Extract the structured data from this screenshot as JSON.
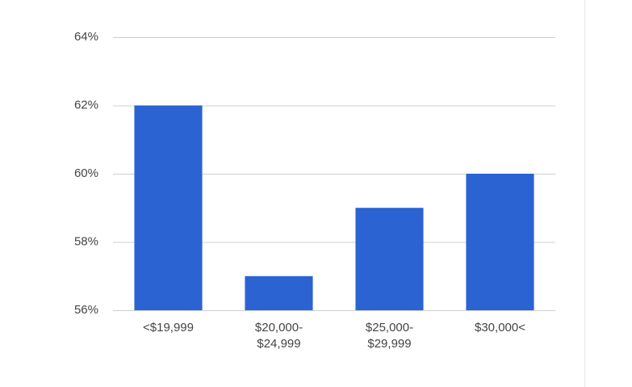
{
  "chart_data": {
    "type": "bar",
    "categories": [
      "<$19,999",
      "$20,000-\n$24,999",
      "$25,000-\n$29,999",
      "$30,000<"
    ],
    "values": [
      62,
      57,
      59,
      60
    ],
    "color": "#2b63d3",
    "ylim": [
      56,
      64
    ],
    "yticks": [
      {
        "value": 56,
        "label": "56%"
      },
      {
        "value": 58,
        "label": "58%"
      },
      {
        "value": 60,
        "label": "60%"
      },
      {
        "value": 62,
        "label": "62%"
      },
      {
        "value": 64,
        "label": "64%"
      }
    ],
    "grid": true
  }
}
